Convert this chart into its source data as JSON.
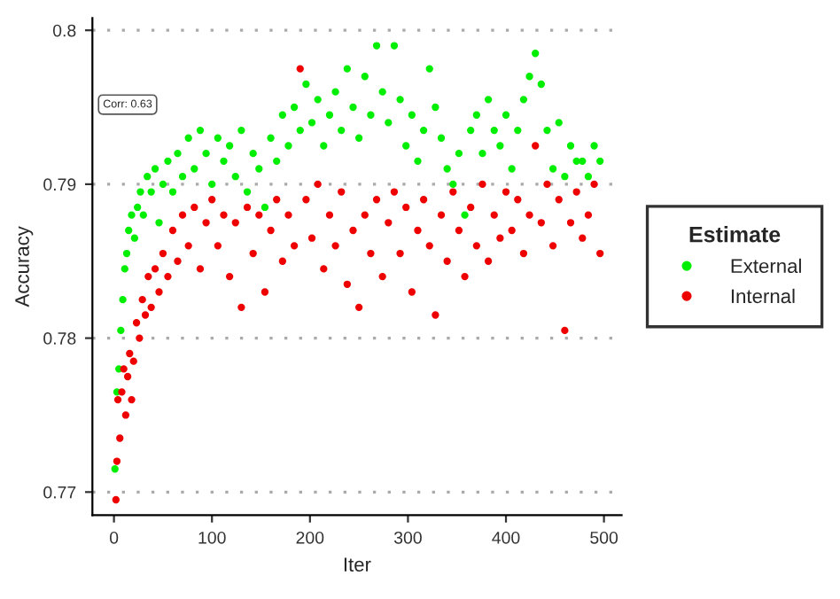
{
  "chart_data": {
    "type": "scatter",
    "xlabel": "Iter",
    "ylabel": "Accuracy",
    "legend_title": "Estimate",
    "legend": "right",
    "grid": "y",
    "marker": "circle",
    "xlim": [
      -22,
      518
    ],
    "xticks": [
      0,
      100,
      200,
      300,
      400,
      500
    ],
    "ylim": [
      0.7685,
      0.8008
    ],
    "yticks": [
      0.77,
      0.78,
      0.79,
      0.8
    ],
    "annotations": [
      "Corr: 0.63"
    ],
    "series": [
      {
        "name": "External",
        "color": "#00ee00",
        "x": [
          1,
          3,
          5,
          7,
          9,
          11,
          13,
          15,
          18,
          21,
          24,
          27,
          30,
          34,
          38,
          42,
          46,
          50,
          55,
          60,
          65,
          70,
          76,
          82,
          88,
          94,
          100,
          106,
          112,
          118,
          124,
          130,
          136,
          142,
          148,
          154,
          160,
          166,
          172,
          178,
          184,
          190,
          196,
          202,
          208,
          214,
          220,
          226,
          232,
          238,
          244,
          250,
          256,
          262,
          268,
          274,
          280,
          286,
          292,
          298,
          304,
          310,
          316,
          322,
          328,
          334,
          340,
          346,
          352,
          358,
          364,
          370,
          376,
          382,
          388,
          394,
          400,
          406,
          412,
          418,
          424,
          430,
          436,
          442,
          448,
          454,
          460,
          466,
          472,
          478,
          484,
          490,
          496
        ],
        "values": [
          0.7715,
          0.7765,
          0.778,
          0.7805,
          0.7825,
          0.7845,
          0.7855,
          0.787,
          0.788,
          0.7865,
          0.7885,
          0.7895,
          0.788,
          0.7905,
          0.7895,
          0.791,
          0.7875,
          0.79,
          0.7915,
          0.7895,
          0.792,
          0.7905,
          0.793,
          0.791,
          0.7935,
          0.792,
          0.79,
          0.793,
          0.7915,
          0.7925,
          0.7905,
          0.7935,
          0.7895,
          0.792,
          0.791,
          0.7885,
          0.793,
          0.7915,
          0.7945,
          0.7925,
          0.795,
          0.7935,
          0.7965,
          0.794,
          0.7955,
          0.7925,
          0.7945,
          0.796,
          0.7935,
          0.7975,
          0.795,
          0.793,
          0.797,
          0.7945,
          0.799,
          0.796,
          0.794,
          0.799,
          0.7955,
          0.7925,
          0.7945,
          0.7915,
          0.7935,
          0.7975,
          0.795,
          0.793,
          0.791,
          0.79,
          0.792,
          0.788,
          0.7935,
          0.7945,
          0.792,
          0.7955,
          0.7935,
          0.7925,
          0.7945,
          0.791,
          0.7935,
          0.7955,
          0.797,
          0.7985,
          0.7965,
          0.7935,
          0.791,
          0.794,
          0.7905,
          0.7925,
          0.7915,
          0.7915,
          0.7905,
          0.7925,
          0.7915
        ]
      },
      {
        "name": "Internal",
        "color": "#ee0000",
        "x": [
          2,
          3,
          4,
          6,
          8,
          10,
          12,
          14,
          16,
          18,
          20,
          23,
          26,
          29,
          32,
          35,
          38,
          42,
          46,
          50,
          55,
          60,
          65,
          70,
          76,
          82,
          88,
          94,
          100,
          106,
          112,
          118,
          124,
          130,
          136,
          142,
          148,
          154,
          160,
          166,
          172,
          178,
          184,
          190,
          196,
          202,
          208,
          214,
          220,
          226,
          232,
          238,
          244,
          250,
          256,
          262,
          268,
          274,
          280,
          286,
          292,
          298,
          304,
          310,
          316,
          322,
          328,
          334,
          340,
          346,
          352,
          358,
          364,
          370,
          376,
          382,
          388,
          394,
          400,
          406,
          412,
          418,
          424,
          430,
          436,
          442,
          448,
          454,
          460,
          466,
          472,
          478,
          484,
          490,
          496
        ],
        "values": [
          0.7695,
          0.772,
          0.776,
          0.7735,
          0.7765,
          0.778,
          0.775,
          0.7775,
          0.779,
          0.776,
          0.7785,
          0.781,
          0.78,
          0.7825,
          0.7815,
          0.784,
          0.782,
          0.7845,
          0.783,
          0.7855,
          0.784,
          0.787,
          0.785,
          0.788,
          0.786,
          0.7885,
          0.7845,
          0.7875,
          0.789,
          0.786,
          0.788,
          0.784,
          0.7875,
          0.782,
          0.7885,
          0.7855,
          0.788,
          0.783,
          0.787,
          0.789,
          0.785,
          0.788,
          0.786,
          0.7975,
          0.789,
          0.7865,
          0.79,
          0.7845,
          0.788,
          0.786,
          0.7895,
          0.7835,
          0.787,
          0.782,
          0.788,
          0.7855,
          0.789,
          0.784,
          0.7875,
          0.7895,
          0.7855,
          0.7885,
          0.783,
          0.787,
          0.789,
          0.786,
          0.7815,
          0.788,
          0.785,
          0.7895,
          0.787,
          0.784,
          0.7885,
          0.786,
          0.79,
          0.785,
          0.788,
          0.7865,
          0.7895,
          0.787,
          0.789,
          0.7855,
          0.788,
          0.7925,
          0.7875,
          0.79,
          0.786,
          0.789,
          0.7805,
          0.7875,
          0.7895,
          0.7865,
          0.788,
          0.79,
          0.7855
        ]
      }
    ]
  }
}
